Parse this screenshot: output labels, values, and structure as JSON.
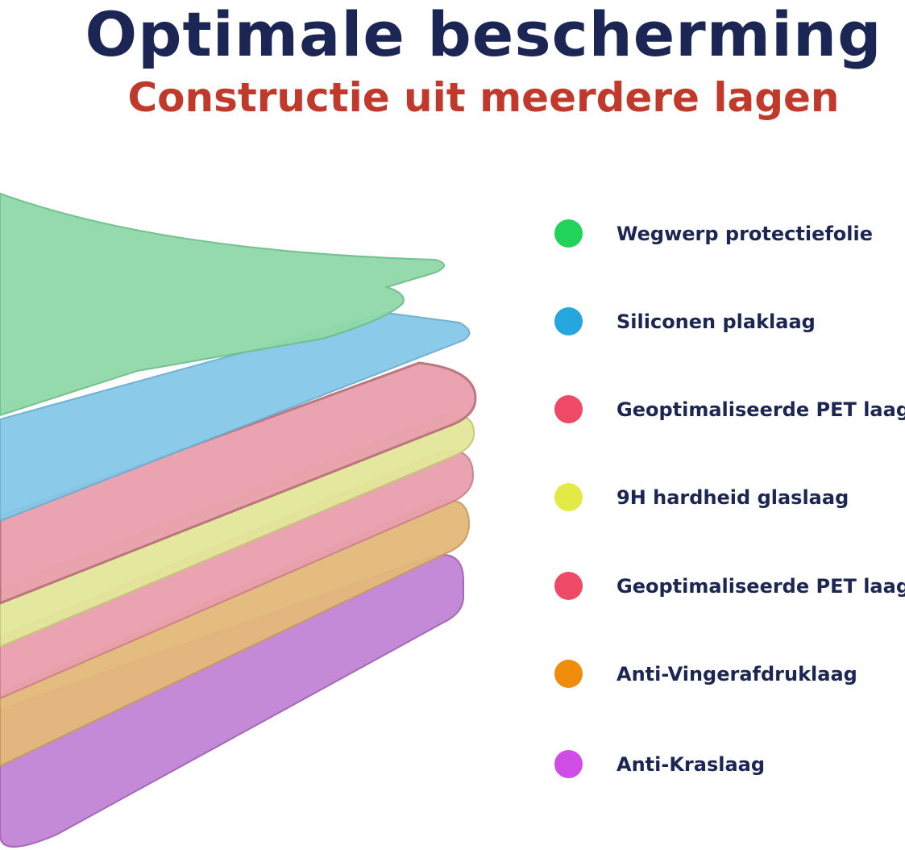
{
  "header": {
    "title": "Optimale bescherming",
    "subtitle": "Constructie uit meerdere lagen"
  },
  "legend": [
    {
      "label": "Wegwerp protectiefolie",
      "color": "#22d35b"
    },
    {
      "label": "Siliconen plaklaag",
      "color": "#26a6de"
    },
    {
      "label": "Geoptimaliseerde PET laag",
      "color": "#ee4a66"
    },
    {
      "label": "9H hardheid glaslaag",
      "color": "#e3ea45"
    },
    {
      "label": "Geoptimaliseerde PET laag",
      "color": "#ee4a66"
    },
    {
      "label": "Anti-Vingerafdruklaag",
      "color": "#f08c0c"
    },
    {
      "label": "Anti-Kraslaag",
      "color": "#cf4ce6"
    }
  ],
  "layer_colors": [
    "#c48ad8",
    "#e4b97a",
    "#eaa3b0",
    "#e3e79a",
    "#e9a0ad",
    "#86c8e8",
    "#8fd9a8"
  ]
}
